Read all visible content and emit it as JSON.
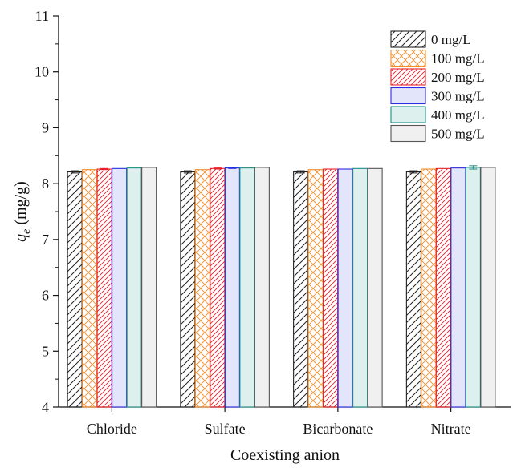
{
  "chart_data": {
    "type": "bar",
    "title": "",
    "xlabel": "Coexisting anion",
    "ylabel_main": "q",
    "ylabel_sub": "e",
    "ylabel_unit": " (mg/g)",
    "ylim": [
      4,
      11
    ],
    "yticks": [
      "4",
      "5",
      "6",
      "7",
      "8",
      "9",
      "10",
      "11"
    ],
    "grid": false,
    "legend_position": "top-right",
    "categories": [
      "Chloride",
      "Sulfate",
      "Bicarbonate",
      "Nitrate"
    ],
    "series": [
      {
        "name": "0 mg/L",
        "values": [
          8.21,
          8.21,
          8.21,
          8.21
        ],
        "error": [
          0.02,
          0.02,
          0.02,
          0.02
        ],
        "color": "#222222",
        "pattern": "diagonal"
      },
      {
        "name": "100 mg/L",
        "values": [
          8.25,
          8.25,
          8.25,
          8.26
        ],
        "error": [
          0.0,
          0.0,
          0.0,
          0.0
        ],
        "color": "#F28C28",
        "pattern": "crosshatch"
      },
      {
        "name": "200 mg/L",
        "values": [
          8.26,
          8.27,
          8.26,
          8.27
        ],
        "error": [
          0.01,
          0.01,
          0.0,
          0.0
        ],
        "color": "#E8202A",
        "pattern": "dense-diagonal"
      },
      {
        "name": "300 mg/L",
        "values": [
          8.27,
          8.28,
          8.26,
          8.28
        ],
        "error": [
          0.0,
          0.01,
          0.0,
          0.0
        ],
        "color": "#2B2BE0",
        "fill": "#E3E6FA",
        "pattern": "solid"
      },
      {
        "name": "400 mg/L",
        "values": [
          8.28,
          8.28,
          8.27,
          8.29
        ],
        "error": [
          0.0,
          0.0,
          0.0,
          0.03
        ],
        "color": "#1E8C86",
        "fill": "#DDF0EE",
        "pattern": "solid"
      },
      {
        "name": "500 mg/L",
        "values": [
          8.29,
          8.29,
          8.27,
          8.29
        ],
        "error": [
          0.0,
          0.0,
          0.0,
          0.0
        ],
        "color": "#555555",
        "fill": "#F0F0F0",
        "pattern": "solid"
      }
    ]
  }
}
